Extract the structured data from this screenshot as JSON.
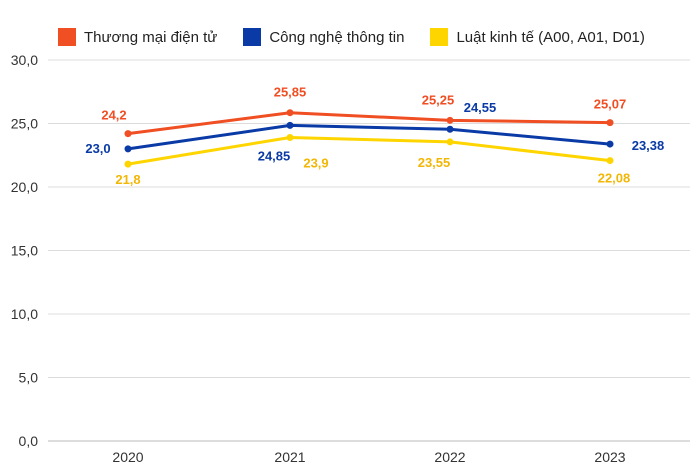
{
  "chart_data": {
    "type": "line",
    "categories": [
      "2020",
      "2021",
      "2022",
      "2023"
    ],
    "yticks": [
      "0,0",
      "5,0",
      "10,0",
      "15,0",
      "20,0",
      "25,0",
      "30,0"
    ],
    "ylim": [
      0,
      30
    ],
    "grid": true,
    "legend_position": "top",
    "series": [
      {
        "name": "Thương mại điện tử",
        "color": "#f04e23",
        "values": [
          24.2,
          25.85,
          25.25,
          25.07
        ],
        "labels": [
          "24,2",
          "25,85",
          "25,25",
          "25,07"
        ]
      },
      {
        "name": "Công nghệ thông tin",
        "color": "#0a3aa6",
        "values": [
          23.0,
          24.85,
          24.55,
          23.38
        ],
        "labels": [
          "23,0",
          "24,85",
          "24,55",
          "23,38"
        ]
      },
      {
        "name": "Luật kinh tế (A00, A01, D01)",
        "color": "#ffd500",
        "values": [
          21.8,
          23.9,
          23.55,
          22.08
        ],
        "labels": [
          "21,8",
          "23,9",
          "23,55",
          "22,08"
        ]
      }
    ]
  },
  "label_colors": [
    "#f04e23",
    "#0a3aa6",
    "#f2b705"
  ]
}
